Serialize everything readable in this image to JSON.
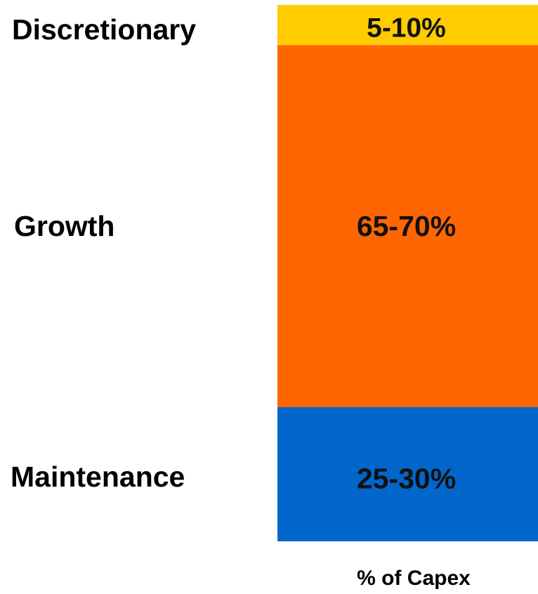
{
  "chart_data": {
    "type": "bar",
    "stacked": true,
    "orientation": "vertical",
    "xlabel": "% of Capex",
    "title": "",
    "ylabel": "",
    "segments": [
      {
        "category": "Discretionary",
        "label": "5-10%",
        "value": 7.5,
        "color": "#FFCC00"
      },
      {
        "category": "Growth",
        "label": "65-70%",
        "value": 67.5,
        "color": "#FF6600"
      },
      {
        "category": "Maintenance",
        "label": "25-30%",
        "value": 25,
        "color": "#0066CC"
      }
    ],
    "grid": false,
    "legend": "none"
  }
}
